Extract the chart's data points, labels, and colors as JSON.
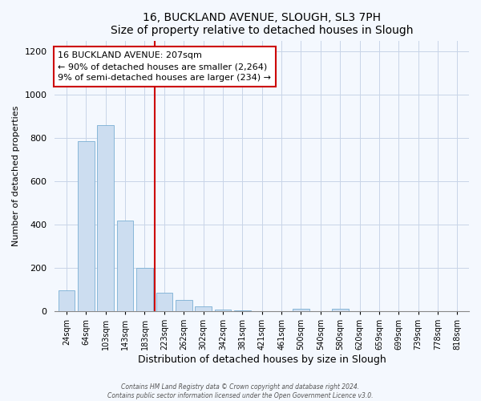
{
  "title": "16, BUCKLAND AVENUE, SLOUGH, SL3 7PH",
  "subtitle": "Size of property relative to detached houses in Slough",
  "xlabel": "Distribution of detached houses by size in Slough",
  "ylabel": "Number of detached properties",
  "bar_labels": [
    "24sqm",
    "64sqm",
    "103sqm",
    "143sqm",
    "183sqm",
    "223sqm",
    "262sqm",
    "302sqm",
    "342sqm",
    "381sqm",
    "421sqm",
    "461sqm",
    "500sqm",
    "540sqm",
    "580sqm",
    "620sqm",
    "659sqm",
    "699sqm",
    "739sqm",
    "778sqm",
    "818sqm"
  ],
  "bar_heights": [
    95,
    785,
    860,
    420,
    200,
    85,
    52,
    22,
    8,
    5,
    0,
    0,
    12,
    0,
    12,
    0,
    0,
    0,
    0,
    0,
    0
  ],
  "bar_color": "#ccddf0",
  "bar_edge_color": "#7aafd4",
  "vline_x": 4.5,
  "vline_color": "#cc0000",
  "annotation_title": "16 BUCKLAND AVENUE: 207sqm",
  "annotation_line1": "← 90% of detached houses are smaller (2,264)",
  "annotation_line2": "9% of semi-detached houses are larger (234) →",
  "annotation_box_color": "#ffffff",
  "annotation_border_color": "#cc0000",
  "ylim": [
    0,
    1250
  ],
  "yticks": [
    0,
    200,
    400,
    600,
    800,
    1000,
    1200
  ],
  "background_color": "#f4f8fe",
  "footer_line1": "Contains HM Land Registry data © Crown copyright and database right 2024.",
  "footer_line2": "Contains public sector information licensed under the Open Government Licence v3.0."
}
